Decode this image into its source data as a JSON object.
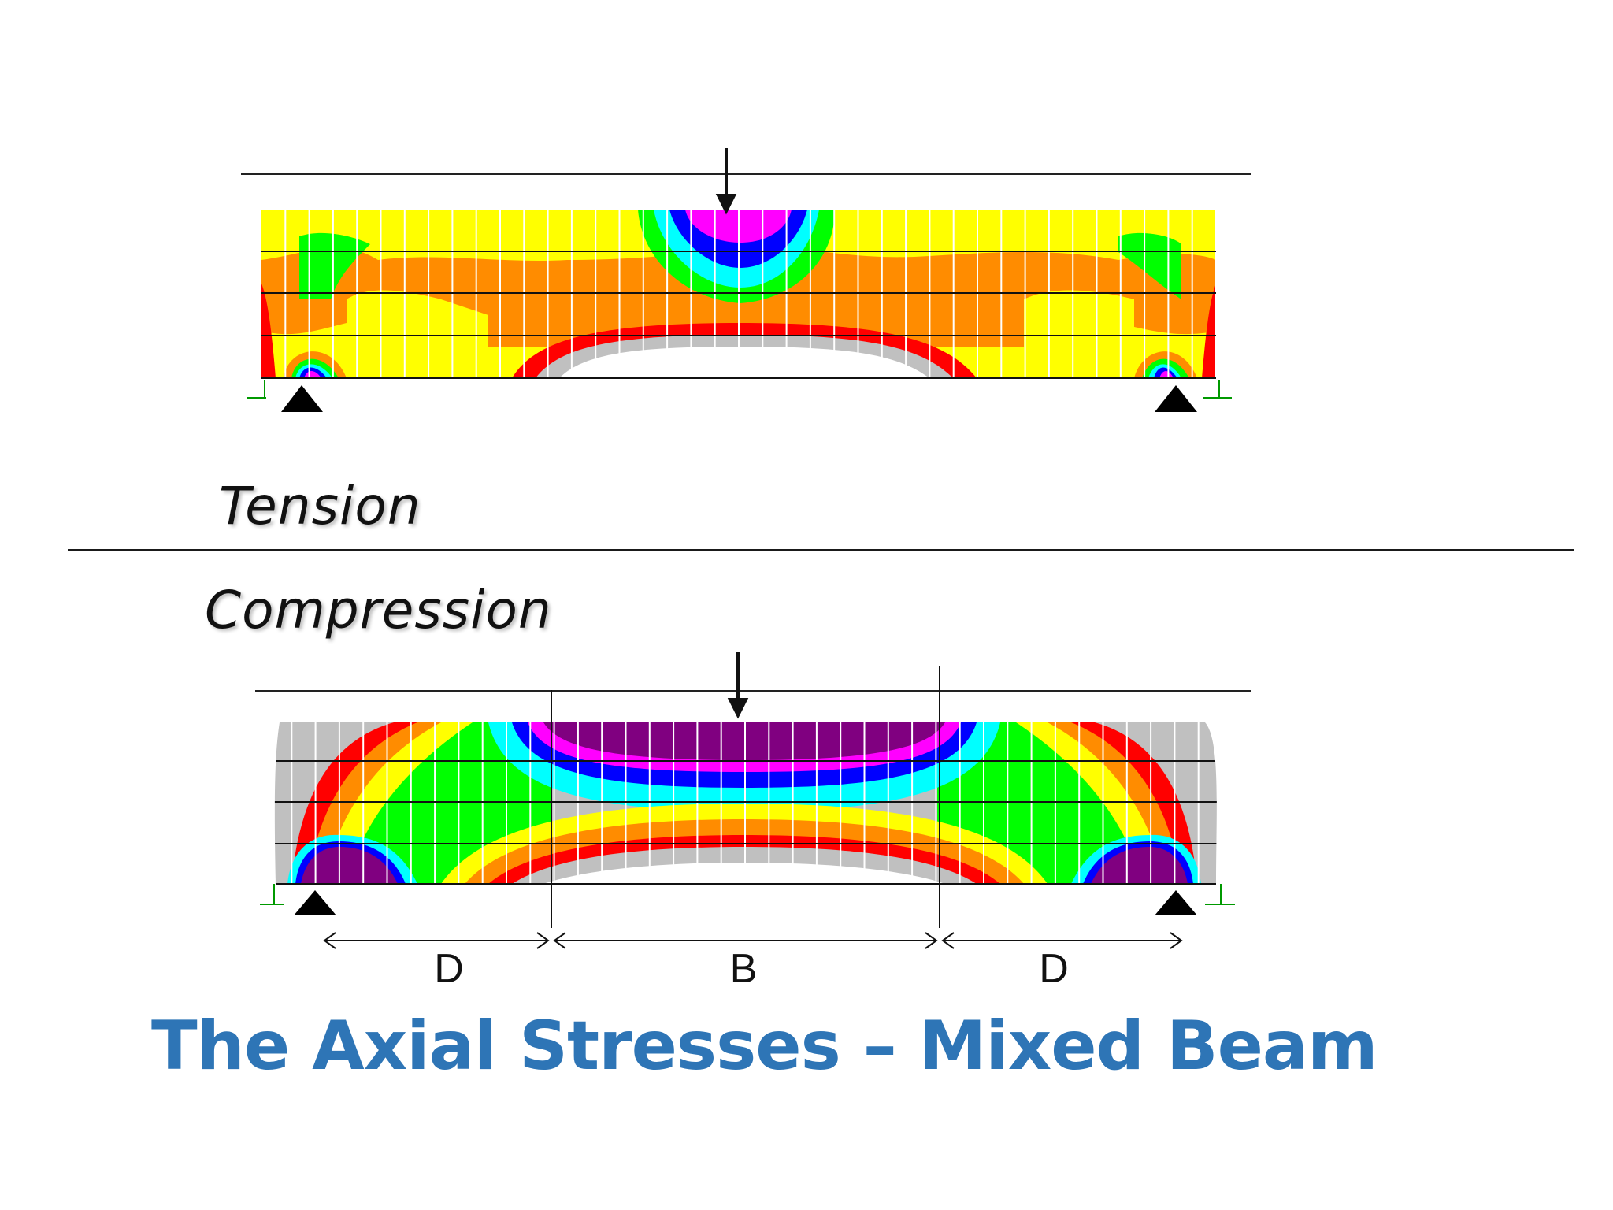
{
  "labels": {
    "tension": "Tension",
    "compression": "Compression"
  },
  "spans": {
    "left": "D",
    "middle": "B",
    "right": "D"
  },
  "title": "The Axial Stresses – Mixed Beam",
  "colors": {
    "title": "#2e75b6",
    "magenta": "#ff00ff",
    "purple": "#800080",
    "blue": "#0000ff",
    "cyan": "#00ffff",
    "green": "#00ff00",
    "yellow": "#ffff00",
    "orange": "#ff8c00",
    "red": "#ff0000",
    "gray": "#c0c0c0"
  }
}
